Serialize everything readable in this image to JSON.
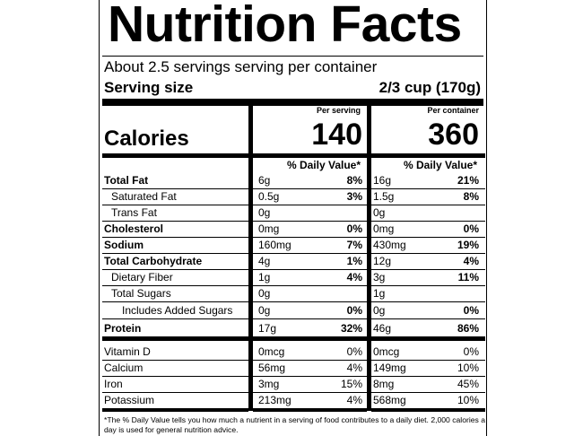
{
  "title": "Nutrition Facts",
  "servings_line": "About 2.5 servings serving per container",
  "serving_size_label": "Serving size",
  "serving_size_value": "2/3 cup (170g)",
  "calories_label": "Calories",
  "per_serving_header": "Per serving",
  "per_container_header": "Per container",
  "calories_per_serving": "140",
  "calories_per_container": "360",
  "dv_header": "% Daily Value*",
  "nutrients": [
    {
      "name": "Total Fat",
      "serving_amount": "6g",
      "serving_dv": "8%",
      "container_amount": "16g",
      "container_dv": "21%"
    },
    {
      "name": "Saturated Fat",
      "serving_amount": "0.5g",
      "serving_dv": "3%",
      "container_amount": "1.5g",
      "container_dv": "8%"
    },
    {
      "name": "Trans Fat",
      "serving_amount": "0g",
      "serving_dv": "",
      "container_amount": "0g",
      "container_dv": ""
    },
    {
      "name": "Cholesterol",
      "serving_amount": "0mg",
      "serving_dv": "0%",
      "container_amount": "0mg",
      "container_dv": "0%"
    },
    {
      "name": "Sodium",
      "serving_amount": "160mg",
      "serving_dv": "7%",
      "container_amount": "430mg",
      "container_dv": "19%"
    },
    {
      "name": "Total Carbohydrate",
      "serving_amount": "4g",
      "serving_dv": "1%",
      "container_amount": "12g",
      "container_dv": "4%"
    },
    {
      "name": "Dietary Fiber",
      "serving_amount": "1g",
      "serving_dv": "4%",
      "container_amount": "3g",
      "container_dv": "11%"
    },
    {
      "name": "Total Sugars",
      "serving_amount": "0g",
      "serving_dv": "",
      "container_amount": "1g",
      "container_dv": ""
    },
    {
      "name": "Includes Added Sugars",
      "serving_amount": "0g",
      "serving_dv": "0%",
      "container_amount": "0g",
      "container_dv": "0%"
    },
    {
      "name": "Protein",
      "serving_amount": "17g",
      "serving_dv": "32%",
      "container_amount": "46g",
      "container_dv": "86%"
    }
  ],
  "vitamins": [
    {
      "name": "Vitamin D",
      "serving_amount": "0mcg",
      "serving_dv": "0%",
      "container_amount": "0mcg",
      "container_dv": "0%"
    },
    {
      "name": "Calcium",
      "serving_amount": "56mg",
      "serving_dv": "4%",
      "container_amount": "149mg",
      "container_dv": "10%"
    },
    {
      "name": "Iron",
      "serving_amount": "3mg",
      "serving_dv": "15%",
      "container_amount": "8mg",
      "container_dv": "45%"
    },
    {
      "name": "Potassium",
      "serving_amount": "213mg",
      "serving_dv": "4%",
      "container_amount": "568mg",
      "container_dv": "10%"
    }
  ],
  "footnote": "*The % Daily Value tells you how much a nutrient in a serving of food contributes to a daily diet. 2,000 calories a day is used for general nutrition advice."
}
